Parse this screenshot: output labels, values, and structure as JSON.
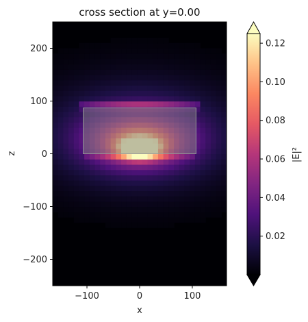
{
  "chart_data": {
    "type": "heatmap",
    "title": "cross section at y=0.00",
    "xlabel": "x",
    "ylabel": "z",
    "xlim": [
      -165,
      165
    ],
    "ylim": [
      -250,
      250
    ],
    "xticks": [
      -100,
      0,
      100
    ],
    "yticks": [
      -200,
      -100,
      0,
      100,
      200
    ],
    "colorbar": {
      "label": "|E|²",
      "colormap": "magma",
      "range": [
        0,
        0.125
      ],
      "ticks": [
        0.02,
        0.04,
        0.06,
        0.08,
        0.1,
        0.12
      ],
      "extend": "both"
    },
    "field": {
      "peak_value": 0.12,
      "peak_center": [
        0,
        12
      ],
      "grid_step": 10
    },
    "structure": {
      "shape": "rectangle",
      "x": [
        -107,
        107
      ],
      "z": [
        0,
        87
      ],
      "fill": "#808080",
      "opacity": 0.5
    }
  }
}
